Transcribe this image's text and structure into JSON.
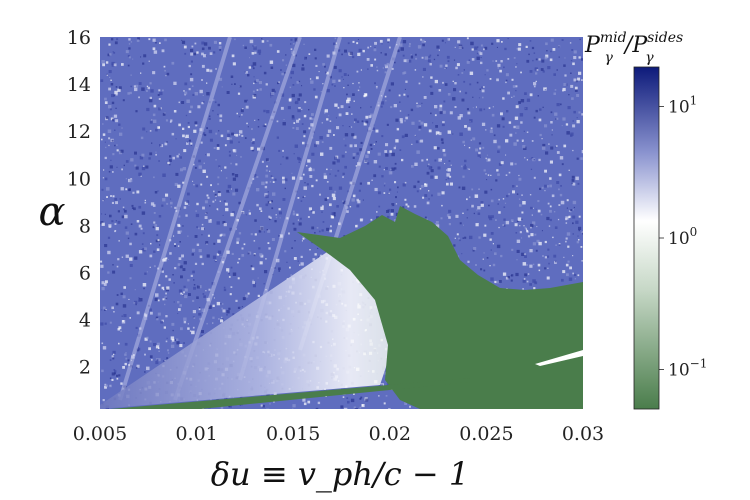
{
  "chart_data": {
    "type": "heatmap",
    "title": "",
    "xlabel": "δu ≡ v_ph/c − 1",
    "ylabel": "α",
    "xlim": [
      0.005,
      0.03
    ],
    "ylim": [
      0.2,
      16
    ],
    "x_ticks": [
      "0.005",
      "0.01",
      "0.015",
      "0.02",
      "0.025",
      "0.03"
    ],
    "x_tick_values": [
      0.005,
      0.01,
      0.015,
      0.02,
      0.025,
      0.03
    ],
    "y_ticks": [
      "2",
      "4",
      "6",
      "8",
      "10",
      "12",
      "14",
      "16"
    ],
    "y_tick_values": [
      2,
      4,
      6,
      8,
      10,
      12,
      14,
      16
    ],
    "colorbar": {
      "label_main": "P",
      "label_sub_num": "γ",
      "label_sup_num": "mid",
      "label_sub_den": "γ",
      "label_sup_den": "sides",
      "scale": "log",
      "range": [
        0.05,
        20
      ],
      "ticks": [
        {
          "base": "10",
          "exp": "1",
          "value": 10
        },
        {
          "base": "10",
          "exp": "0",
          "value": 1
        },
        {
          "base": "10",
          "exp": "−1",
          "value": 0.1
        }
      ],
      "colors": {
        "low": "#4a7d4b",
        "mid": "#ffffff",
        "high": "#0d1a7a"
      }
    },
    "regions": [
      {
        "name": "green region (ratio < 0.1)",
        "approx_bounds": "δu > 0.018, α < 8"
      },
      {
        "name": "noisy blue region (ratio ≈ 1–10)",
        "approx_bounds": "upper half, α > 6"
      }
    ]
  }
}
